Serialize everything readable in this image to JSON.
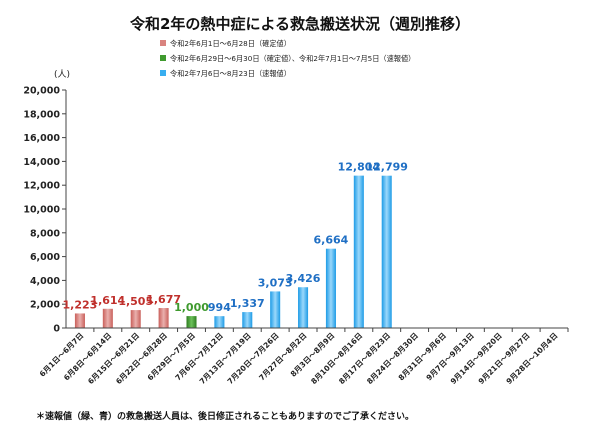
{
  "chart_data": {
    "type": "bar",
    "title": "令和2年の熱中症による救急搬送状況（週別推移）",
    "ylabel": "(人)",
    "ylim": [
      0,
      20000
    ],
    "yticks": [
      0,
      2000,
      4000,
      6000,
      8000,
      10000,
      12000,
      14000,
      16000,
      18000,
      20000
    ],
    "ytick_labels": [
      "0",
      "2,000",
      "4,000",
      "6,000",
      "8,000",
      "10,000",
      "12,000",
      "14,000",
      "16,000",
      "18,000",
      "20,000"
    ],
    "grid": false,
    "legend_position": "top-left",
    "legend": [
      {
        "key": "confirmed",
        "label": "令和2年6月1日～6月28日（確定値）",
        "color": "#d9837f"
      },
      {
        "key": "mixed",
        "label": "令和2年6月29日～6月30日（確定値）、令和2年7月1日～7月5日（速報値）",
        "color": "#3f9a2e"
      },
      {
        "key": "prelim",
        "label": "令和2年7月6日～8月23日（速報値）",
        "color": "#38aef0"
      }
    ],
    "categories": [
      "6月1日～6月7日",
      "6月8日～6月14日",
      "6月15日～6月21日",
      "6月22日～6月28日",
      "6月29日～7月5日",
      "7月6日～7月12日",
      "7月13日～7月19日",
      "7月20日～7月26日",
      "7月27日～8月2日",
      "8月3日～8月9日",
      "8月10日～8月16日",
      "8月17日～8月23日",
      "8月24日～8月30日",
      "8月31日～9月6日",
      "9月7日～9月13日",
      "9月14日～9月20日",
      "9月21日～9月27日",
      "9月28日～10月4日"
    ],
    "values": [
      1223,
      1614,
      1505,
      1677,
      1000,
      994,
      1337,
      3073,
      3426,
      6664,
      12804,
      12799,
      null,
      null,
      null,
      null,
      null,
      null
    ],
    "value_labels": [
      "1,223",
      "1,614",
      "1,505",
      "1,677",
      "1,000",
      "994",
      "1,337",
      "3,073",
      "3,426",
      "6,664",
      "12,804",
      "12,799",
      "",
      "",
      "",
      "",
      "",
      ""
    ],
    "series_group": [
      "confirmed",
      "confirmed",
      "confirmed",
      "confirmed",
      "mixed",
      "prelim",
      "prelim",
      "prelim",
      "prelim",
      "prelim",
      "prelim",
      "prelim",
      "",
      "",
      "",
      "",
      "",
      ""
    ],
    "label_colors": {
      "confirmed": "#c0302c",
      "mixed": "#3f9a2e",
      "prelim": "#1f6fc4"
    },
    "footnote": "＊速報値（緑、青）の救急搬送人員は、後日修正されることもありますのでご了承ください。"
  }
}
